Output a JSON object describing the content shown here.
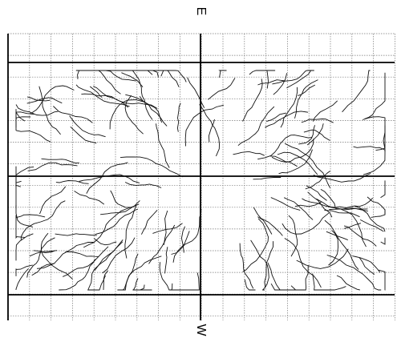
{
  "labels": {
    "top": "E",
    "bottom": "W"
  }
}
